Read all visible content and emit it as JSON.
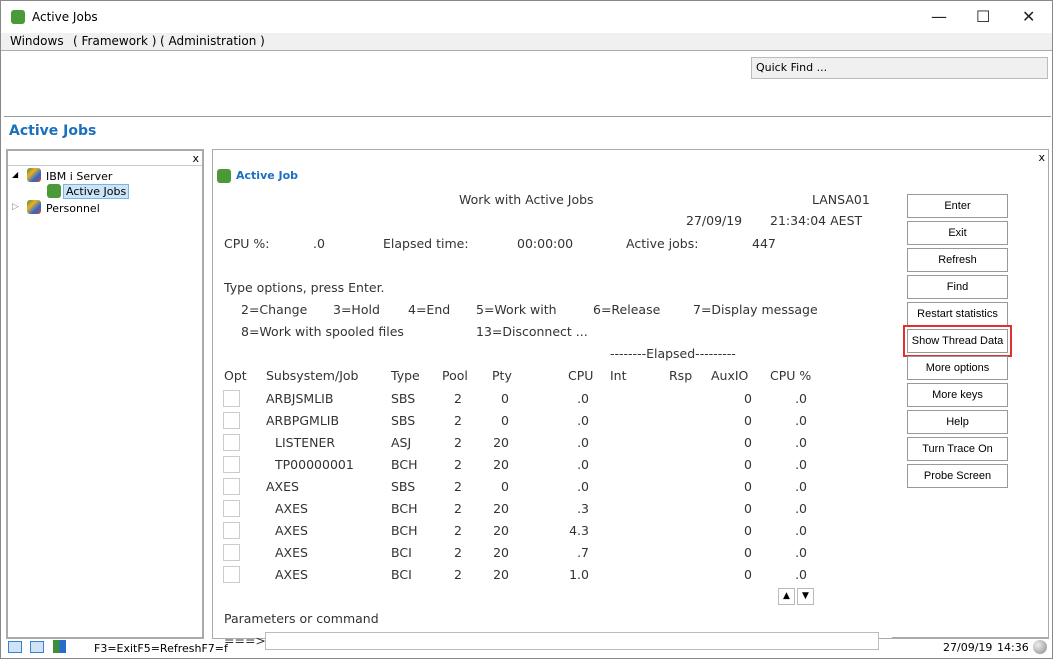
{
  "window": {
    "title": "Active Jobs",
    "minimize": "—",
    "maximize": "☐",
    "close": "✕"
  },
  "menu": [
    "Windows",
    "( Framework )",
    "( Administration )"
  ],
  "quick_find": "Quick Find ...",
  "heading": "Active Jobs",
  "tree": {
    "close": "x",
    "items": [
      {
        "label": "IBM i Server",
        "expander": "◢"
      },
      {
        "label": "Active Jobs"
      },
      {
        "label": "Personnel",
        "expander": "▷"
      }
    ]
  },
  "panel": {
    "close": "x",
    "title": "Active Job"
  },
  "screen": {
    "title": "Work with Active Jobs",
    "system": "LANSA01",
    "date": "27/09/19",
    "time": "21:34:04 AEST",
    "cpu_label": "CPU %:",
    "cpu_value": ".0",
    "elapsed_label": "Elapsed time:",
    "elapsed_value": "00:00:00",
    "active_label": "Active jobs:",
    "active_value": "447",
    "instructions": "Type options, press Enter.",
    "options_line1": [
      "2=Change",
      "3=Hold",
      "4=End",
      "5=Work with",
      "6=Release",
      "7=Display message"
    ],
    "options_line2": [
      "8=Work with spooled files",
      "13=Disconnect ..."
    ],
    "elapsed_header": "--------Elapsed---------",
    "columns": [
      "Opt",
      "Subsystem/Job",
      "Type",
      "Pool",
      "Pty",
      "CPU",
      "Int",
      "Rsp",
      "AuxIO",
      "CPU %"
    ],
    "rows": [
      {
        "job": "ARBJSMLIB",
        "indent": false,
        "type": "SBS",
        "pool": "2",
        "pty": "0",
        "cpu": ".0",
        "auxio": "0",
        "cpupct": ".0"
      },
      {
        "job": "ARBPGMLIB",
        "indent": false,
        "type": "SBS",
        "pool": "2",
        "pty": "0",
        "cpu": ".0",
        "auxio": "0",
        "cpupct": ".0"
      },
      {
        "job": "LISTENER",
        "indent": true,
        "type": "ASJ",
        "pool": "2",
        "pty": "20",
        "cpu": ".0",
        "auxio": "0",
        "cpupct": ".0"
      },
      {
        "job": "TP00000001",
        "indent": true,
        "type": "BCH",
        "pool": "2",
        "pty": "20",
        "cpu": ".0",
        "auxio": "0",
        "cpupct": ".0"
      },
      {
        "job": "AXES",
        "indent": false,
        "type": "SBS",
        "pool": "2",
        "pty": "0",
        "cpu": ".0",
        "auxio": "0",
        "cpupct": ".0"
      },
      {
        "job": "AXES",
        "indent": true,
        "type": "BCH",
        "pool": "2",
        "pty": "20",
        "cpu": ".3",
        "auxio": "0",
        "cpupct": ".0"
      },
      {
        "job": "AXES",
        "indent": true,
        "type": "BCH",
        "pool": "2",
        "pty": "20",
        "cpu": "4.3",
        "auxio": "0",
        "cpupct": ".0"
      },
      {
        "job": "AXES",
        "indent": true,
        "type": "BCI",
        "pool": "2",
        "pty": "20",
        "cpu": ".7",
        "auxio": "0",
        "cpupct": ".0"
      },
      {
        "job": "AXES",
        "indent": true,
        "type": "BCI",
        "pool": "2",
        "pty": "20",
        "cpu": "1.0",
        "auxio": "0",
        "cpupct": ".0"
      }
    ],
    "params_label": "Parameters or command",
    "prompt": "===>",
    "command_value": ""
  },
  "buttons": [
    "Enter",
    "Exit",
    "Refresh",
    "Find",
    "Restart statistics",
    "Show Thread Data",
    "More options",
    "More keys",
    "Help",
    "Turn Trace On",
    "Probe Screen"
  ],
  "highlighted_button": "Show Thread Data",
  "highlight_color": "#e03030",
  "status": {
    "keys": "F3=ExitF5=RefreshF7=f",
    "date": "27/09/19",
    "time": "14:36"
  }
}
